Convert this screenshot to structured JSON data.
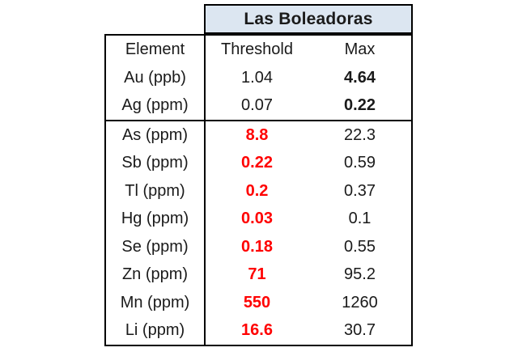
{
  "title": "Las Boleadoras",
  "columns": [
    "Element",
    "Threshold",
    "Max"
  ],
  "rows": [
    {
      "element": "Au (ppb)",
      "threshold": "1.04",
      "max": "4.64",
      "threshold_red": false,
      "max_bold": true,
      "group": "above"
    },
    {
      "element": "Ag (ppm)",
      "threshold": "0.07",
      "max": "0.22",
      "threshold_red": false,
      "max_bold": true,
      "group": "above"
    },
    {
      "element": "As (ppm)",
      "threshold": "8.8",
      "max": "22.3",
      "threshold_red": true,
      "max_bold": false,
      "group": "below"
    },
    {
      "element": "Sb (ppm)",
      "threshold": "0.22",
      "max": "0.59",
      "threshold_red": true,
      "max_bold": false,
      "group": "below"
    },
    {
      "element": "Tl (ppm)",
      "threshold": "0.2",
      "max": "0.37",
      "threshold_red": true,
      "max_bold": false,
      "group": "below"
    },
    {
      "element": "Hg (ppm)",
      "threshold": "0.03",
      "max": "0.1",
      "threshold_red": true,
      "max_bold": false,
      "group": "below"
    },
    {
      "element": "Se (ppm)",
      "threshold": "0.18",
      "max": "0.55",
      "threshold_red": true,
      "max_bold": false,
      "group": "below"
    },
    {
      "element": "Zn (ppm)",
      "threshold": "71",
      "max": "95.2",
      "threshold_red": true,
      "max_bold": false,
      "group": "below"
    },
    {
      "element": "Mn (ppm)",
      "threshold": "550",
      "max": "1260",
      "threshold_red": true,
      "max_bold": false,
      "group": "below"
    },
    {
      "element": "Li (ppm)",
      "threshold": "16.6",
      "max": "30.7",
      "threshold_red": true,
      "max_bold": false,
      "group": "below"
    }
  ],
  "colors": {
    "header_fill": "#DCE6F1",
    "alert_red": "#FF0000",
    "border": "#000000",
    "text": "#1A1A1A",
    "background": "#FFFFFF"
  },
  "chart_data": {
    "type": "table",
    "title": "Las Boleadoras",
    "columns": [
      "Element",
      "Threshold",
      "Max"
    ],
    "rows": [
      [
        "Au (ppb)",
        1.04,
        4.64
      ],
      [
        "Ag (ppm)",
        0.07,
        0.22
      ],
      [
        "As (ppm)",
        8.8,
        22.3
      ],
      [
        "Sb (ppm)",
        0.22,
        0.59
      ],
      [
        "Tl (ppm)",
        0.2,
        0.37
      ],
      [
        "Hg (ppm)",
        0.03,
        0.1
      ],
      [
        "Se (ppm)",
        0.18,
        0.55
      ],
      [
        "Zn (ppm)",
        71,
        95.2
      ],
      [
        "Mn (ppm)",
        550,
        1260
      ],
      [
        "Li (ppm)",
        16.6,
        30.7
      ]
    ],
    "layout_hints": {
      "title_band_fill": "#DCE6F1",
      "title_band_spans": [
        "Threshold",
        "Max"
      ],
      "bold_max_rows": [
        "Au (ppb)",
        "Ag (ppm)"
      ],
      "red_bold_threshold_rows": [
        "As (ppm)",
        "Sb (ppm)",
        "Tl (ppm)",
        "Hg (ppm)",
        "Se (ppm)",
        "Zn (ppm)",
        "Mn (ppm)",
        "Li (ppm)"
      ],
      "thick_divider_after_row": "Ag (ppm)",
      "grid": "outer border, vertical divider after Element column, horizontal divider after Ag row"
    }
  }
}
